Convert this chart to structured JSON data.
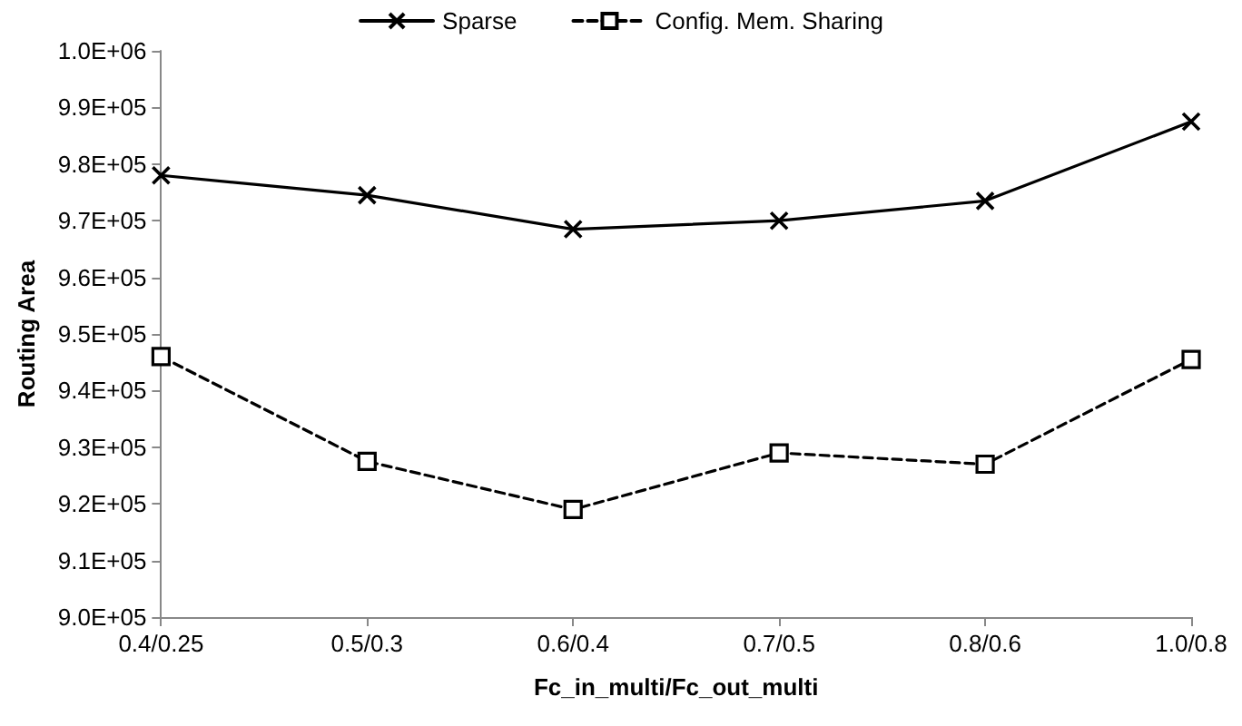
{
  "chart_data": {
    "type": "line",
    "xlabel": "Fc_in_multi/Fc_out_multi",
    "ylabel": "Routing Area",
    "categories": [
      "0.4/0.25",
      "0.5/0.3",
      "0.6/0.4",
      "0.7/0.5",
      "0.8/0.6",
      "1.0/0.8"
    ],
    "series": [
      {
        "name": "Sparse",
        "color": "#000000",
        "marker": "cross",
        "line_style": "solid",
        "values": [
          978000,
          974500,
          968500,
          970000,
          973500,
          987500
        ]
      },
      {
        "name": "Config. Mem. Sharing",
        "color": "#000000",
        "marker": "square",
        "line_style": "dashed",
        "values": [
          946000,
          927500,
          919000,
          929000,
          927000,
          945500
        ]
      }
    ],
    "ylim": [
      900000,
      1000000
    ],
    "yticks": [
      {
        "value": 900000,
        "label": "9.0E+05"
      },
      {
        "value": 910000,
        "label": "9.1E+05"
      },
      {
        "value": 920000,
        "label": "9.2E+05"
      },
      {
        "value": 930000,
        "label": "9.3E+05"
      },
      {
        "value": 940000,
        "label": "9.4E+05"
      },
      {
        "value": 950000,
        "label": "9.5E+05"
      },
      {
        "value": 960000,
        "label": "9.6E+05"
      },
      {
        "value": 970000,
        "label": "9.7E+05"
      },
      {
        "value": 980000,
        "label": "9.8E+05"
      },
      {
        "value": 990000,
        "label": "9.9E+05"
      },
      {
        "value": 1000000,
        "label": "1.0E+06"
      }
    ],
    "grid": false,
    "legend": "top"
  }
}
